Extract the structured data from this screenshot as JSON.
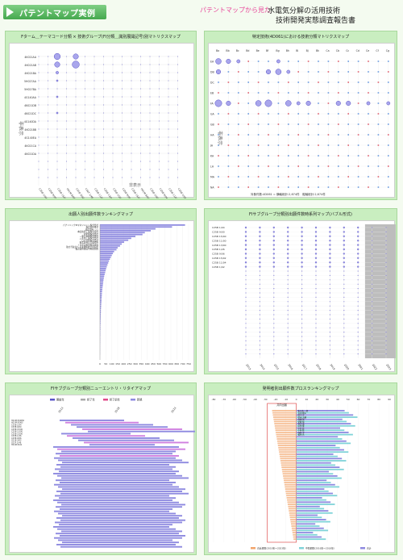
{
  "header": {
    "brand": "パテントマップ実例",
    "seen_from": "パテントマップから見た",
    "title_line1": "水電気分解の活用技術",
    "title_line2": "技術開発実態調査報告書"
  },
  "panels": {
    "p1": {
      "title": "Fターム＿テーマコード分類 × 技術グループ(FI分類＿識別展開記号)別マトリクスマップ",
      "rows": [
        "4K021AA",
        "4K021AB",
        "4K021BA",
        "5H027AA",
        "5H027BA",
        "4G140AA",
        "4K021DB",
        "4K021DC",
        "4G140DA",
        "4K021BB",
        "4G140EA",
        "4K021CA",
        "4K021DA"
      ],
      "cols": [
        "C25B 1/04",
        "C25B 9/00",
        "C25B 15/00",
        "H01M 8/06",
        "C01B 3/02",
        "C02F 1/46",
        "C25B 11/00",
        "C25B 13/00",
        "C25B 1/26",
        "C25B 9/06",
        "C25B 15/02",
        "H01M 8/04",
        "C25B 1/00",
        "C25B 9/04",
        "C25B 11/04",
        "C25B 1/02"
      ],
      "hidden_label": "非表示"
    },
    "p2": {
      "title": "特定技術(4D061)における技術分類マトリクスマップ",
      "rows": [
        "EA",
        "DB",
        "DC",
        "EB",
        "FA",
        "GA",
        "GB",
        "HA",
        "JA",
        "KA",
        "LA",
        "MA",
        "NA"
      ],
      "cols": [
        "Ba",
        "Bb",
        "Bc",
        "Bd",
        "Be",
        "Bf",
        "Bg",
        "Bh",
        "Bi",
        "Bj",
        "Bk",
        "Ca",
        "Cb",
        "Cc",
        "Cd",
        "Ce",
        "Cf",
        "Cg"
      ],
      "hidden_label": "非表示",
      "footer": "対象件数:4D061 = 横軸総計:2,674件　縦軸総計:2,674件"
    },
    "p3": {
      "title": "出願人別出願件数ランキングマップ",
      "applicants": [
        "パナソニックIPマネジメント株式会社",
        "株式会社東芝",
        "株式会社 ○○",
        "本田技研工業株式会社",
        "旭化成株式会社",
        "東京瓦斯株式会社",
        "三菱重工業株式会社",
        "日立造船株式会社",
        "株式会社日立製作所",
        "トヨタ自動車株式会社",
        "独立行政法人 産業技術総合研究所",
        "株式会社豊田中央研究所"
      ],
      "values": [
        720,
        610,
        470,
        430,
        380,
        360,
        300,
        265,
        240,
        205,
        185,
        170,
        150,
        140,
        120,
        110,
        100,
        92,
        84,
        76,
        70,
        64,
        58,
        52,
        48,
        44,
        40,
        36,
        33,
        30,
        28,
        26,
        24,
        22,
        20,
        18,
        17,
        16,
        15,
        14,
        13,
        12,
        11,
        10,
        9,
        8,
        8,
        7,
        7,
        6,
        6,
        5,
        5,
        4,
        4,
        4,
        3,
        3,
        3,
        2,
        2,
        2,
        2,
        1,
        1,
        1,
        1,
        1,
        1
      ],
      "xticks": [
        "0",
        "50",
        "100",
        "150",
        "200",
        "250",
        "300",
        "350",
        "400",
        "450",
        "500",
        "550",
        "600",
        "650",
        "700",
        "750"
      ]
    },
    "p4": {
      "title": "FIサブグループ分類別出願件数時系列マップ(バブル形式)",
      "rows": [
        "C25B 1/04",
        "C25B 9/00",
        "C25B 15/00",
        "C25B 11/00",
        "C25B 13/00",
        "C25B 1/26",
        "C25B 9/06",
        "C25B 15/02",
        "C25B 11/04",
        "C25B 1/02"
      ],
      "years": [
        "2013",
        "2014",
        "2015",
        "2016",
        "2017",
        "2018",
        "2019",
        "2020",
        "2021",
        "2022",
        "2023"
      ]
    },
    "p5": {
      "title": "FIサブグループ分類別ニューエントリ・リタイアマップ",
      "legend": [
        "開始年",
        "終了年",
        "終了前年",
        "新規"
      ],
      "rows": [
        "H01M 8/0656",
        "H01M 8/065",
        "C25B 1/04",
        "C25B 9/00",
        "C25B 15/00",
        "C25B 11/00",
        "C25B 13/00",
        "C25B 1/26",
        "C25B 9/06",
        "C01B 3/02",
        "C02F 1/46",
        "H01M 8/04"
      ],
      "years": [
        "2013",
        "2018",
        "2023"
      ]
    },
    "p6": {
      "title": "発明者別出願件数プロスランキングマップ",
      "inventors": [
        "佐々木 一郎",
        "吉田 健太",
        "田中 実",
        "鈴木 大輔",
        "高橋 誠",
        "伊藤 裕",
        "渡辺 浩",
        "山本 隆",
        "中村 修",
        "小林 聡",
        "加藤 淳",
        "松本 亮"
      ],
      "left_header": "共同出願",
      "legend": [
        "直近期間(2019年～2023年)",
        "中間期間(2016年～2018年)",
        "合計"
      ],
      "xticks": [
        "-80",
        "-70",
        "-60",
        "-50",
        "-40",
        "-30",
        "-20",
        "-10",
        "0",
        "10",
        "20",
        "30",
        "40",
        "50",
        "60",
        "70",
        "80",
        "90"
      ]
    }
  },
  "chart_data": [
    {
      "type": "scatter",
      "title": "Fターム＿テーマコード分類 × 技術グループ(FI分類＿識別展開記号)別マトリクスマップ",
      "xlabel": "",
      "ylabel": "",
      "bubbles": [
        {
          "row": 0,
          "col": 2,
          "size": 7
        },
        {
          "row": 0,
          "col": 4,
          "size": 6
        },
        {
          "row": 1,
          "col": 2,
          "size": 6
        },
        {
          "row": 1,
          "col": 4,
          "size": 8
        },
        {
          "row": 2,
          "col": 2,
          "size": 3
        },
        {
          "row": 3,
          "col": 2,
          "size": 2
        },
        {
          "row": 5,
          "col": 2,
          "size": 2
        },
        {
          "row": 7,
          "col": 2,
          "size": 2
        }
      ]
    },
    {
      "type": "scatter",
      "title": "特定技術(4D061)における技術分類マトリクスマップ",
      "bubbles": [
        {
          "row": 0,
          "col": 0,
          "size": 5
        },
        {
          "row": 0,
          "col": 1,
          "size": 4
        },
        {
          "row": 0,
          "col": 2,
          "size": 3
        },
        {
          "row": 0,
          "col": 6,
          "size": 3
        },
        {
          "row": 1,
          "col": 0,
          "size": 4
        },
        {
          "row": 1,
          "col": 5,
          "size": 4
        },
        {
          "row": 1,
          "col": 6,
          "size": 5
        },
        {
          "row": 1,
          "col": 7,
          "size": 3
        },
        {
          "row": 4,
          "col": 0,
          "size": 6
        },
        {
          "row": 4,
          "col": 1,
          "size": 4
        },
        {
          "row": 4,
          "col": 4,
          "size": 5
        },
        {
          "row": 4,
          "col": 5,
          "size": 6
        },
        {
          "row": 4,
          "col": 7,
          "size": 5
        },
        {
          "row": 4,
          "col": 8,
          "size": 3
        },
        {
          "row": 4,
          "col": 9,
          "size": 4
        },
        {
          "row": 4,
          "col": 12,
          "size": 4
        },
        {
          "row": 4,
          "col": 13,
          "size": 4
        },
        {
          "row": 4,
          "col": 15,
          "size": 3
        },
        {
          "row": 4,
          "col": 17,
          "size": 3
        }
      ]
    },
    {
      "type": "bar",
      "title": "出願人別出願件数ランキングマップ",
      "orientation": "horizontal",
      "xlim": [
        0,
        750
      ]
    },
    {
      "type": "scatter",
      "title": "FIサブグループ分類別出願件数時系列マップ(バブル形式)",
      "shaded_years": [
        "2022",
        "2023"
      ]
    },
    {
      "type": "bar",
      "title": "FIサブグループ分類別ニューエントリ・リタイアマップ",
      "orientation": "horizontal"
    },
    {
      "type": "bar",
      "title": "発明者別出願件数プロスランキングマップ",
      "orientation": "horizontal",
      "xlim": [
        -80,
        90
      ]
    }
  ],
  "colors": {
    "panel_bg": "#c9eec0",
    "bubble": "#a9a6ec",
    "bubble_stroke": "#5a54c8",
    "bar": "#8e8ae0",
    "accent_pink": "#e8479a",
    "shade": "#bdbdbd",
    "orange": "#f2a46a",
    "teal": "#7fd3d8"
  }
}
